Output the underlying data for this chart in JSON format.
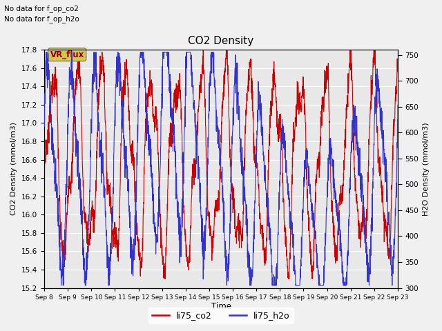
{
  "title": "CO2 Density",
  "xlabel": "Time",
  "ylabel_left": "CO2 Density (mmol/m3)",
  "ylabel_right": "H2O Density (mmol/m3)",
  "ylim_left": [
    15.2,
    17.8
  ],
  "ylim_right": [
    300,
    760
  ],
  "annotation1": "No data for f_op_co2",
  "annotation2": "No data for f_op_h2o",
  "vr_flux_label": "VR_flux",
  "legend_co2": "li75_co2",
  "legend_h2o": "li75_h2o",
  "color_co2": "#cc0000",
  "color_h2o": "#3333cc",
  "bg_color": "#e8e8e8",
  "fig_bg": "#f0f0f0",
  "n_points": 2000,
  "xtick_labels": [
    "Sep 8",
    "Sep 9",
    "Sep 10",
    "Sep 11",
    "Sep 12",
    "Sep 13",
    "Sep 14",
    "Sep 15",
    "Sep 16",
    "Sep 17",
    "Sep 18",
    "Sep 19",
    "Sep 20",
    "Sep 21",
    "Sep 22",
    "Sep 23"
  ],
  "yticks_left": [
    15.2,
    15.4,
    15.6,
    15.8,
    16.0,
    16.2,
    16.4,
    16.6,
    16.8,
    17.0,
    17.2,
    17.4,
    17.6,
    17.8
  ],
  "yticks_right": [
    300,
    350,
    400,
    450,
    500,
    550,
    600,
    650,
    700,
    750
  ]
}
